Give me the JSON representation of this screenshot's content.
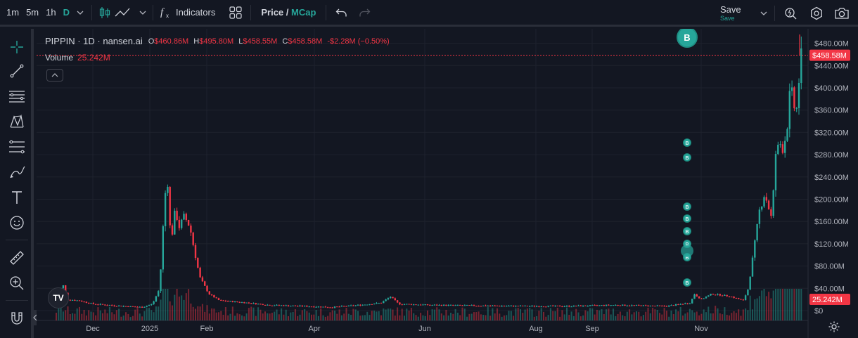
{
  "toolbar": {
    "intervals": [
      "1m",
      "5m",
      "1h",
      "D"
    ],
    "active_interval": "D",
    "indicators_label": "Indicators",
    "price_label": "Price",
    "slash": "/",
    "mcap_label": "MCap",
    "save_label": "Save",
    "save_sub": "Save"
  },
  "legend": {
    "symbol": "PIPPIN · 1D · nansen.ai",
    "o_key": "O",
    "o_val": "$460.86M",
    "h_key": "H",
    "h_val": "$495.80M",
    "l_key": "L",
    "l_val": "$458.55M",
    "c_key": "C",
    "c_val": "$458.58M",
    "change": "-$2.28M (−0.50%)",
    "volume_label": "Volume",
    "volume_val": "25.242M"
  },
  "colors": {
    "background": "#131722",
    "up": "#26a69a",
    "down": "#f23645",
    "grid": "#1e222d",
    "marker": "#26a69a"
  },
  "marker_letter": "B",
  "logo_text": "TV",
  "chart_data": {
    "type": "candlestick",
    "y_axis": {
      "ticks": [
        "$480.00M",
        "$440.00M",
        "$400.00M",
        "$360.00M",
        "$320.00M",
        "$280.00M",
        "$240.00M",
        "$200.00M",
        "$160.00M",
        "$120.00M",
        "$80.00M",
        "$40.00M",
        "$0"
      ],
      "tick_values": [
        480,
        440,
        400,
        360,
        320,
        280,
        240,
        200,
        160,
        120,
        80,
        40,
        0
      ],
      "unit": "USD millions (market cap)",
      "ylim": [
        0,
        500
      ]
    },
    "x_axis": {
      "ticks": [
        "Dec",
        "2025",
        "Feb",
        "Apr",
        "Jun",
        "Aug",
        "Sep",
        "Nov"
      ]
    },
    "last_price_label": "$458.58M",
    "last_price": 458.58,
    "last_volume_label": "25.242M",
    "last_volume": 25.242,
    "key_points": [
      {
        "x": "Nov (early, 2024)",
        "y": 40
      },
      {
        "x": "Jan 2025 peak",
        "y": 245
      },
      {
        "x": "Jan 2025 secondary peak",
        "y": 170
      },
      {
        "x": "Feb–Oct 2025 range low",
        "y": 10
      },
      {
        "x": "May 2025 bump",
        "y": 25
      },
      {
        "x": "Oct 2025 rally start",
        "y": 50
      },
      {
        "x": "Nov 2025 peak",
        "y": 230
      },
      {
        "x": "Dec 2025 peak",
        "y": 440
      },
      {
        "x": "latest",
        "y": 458.58
      }
    ],
    "buy_markers_y": [
      300,
      275,
      190,
      170,
      150,
      130,
      110,
      95,
      55,
      490
    ],
    "grid": true
  }
}
